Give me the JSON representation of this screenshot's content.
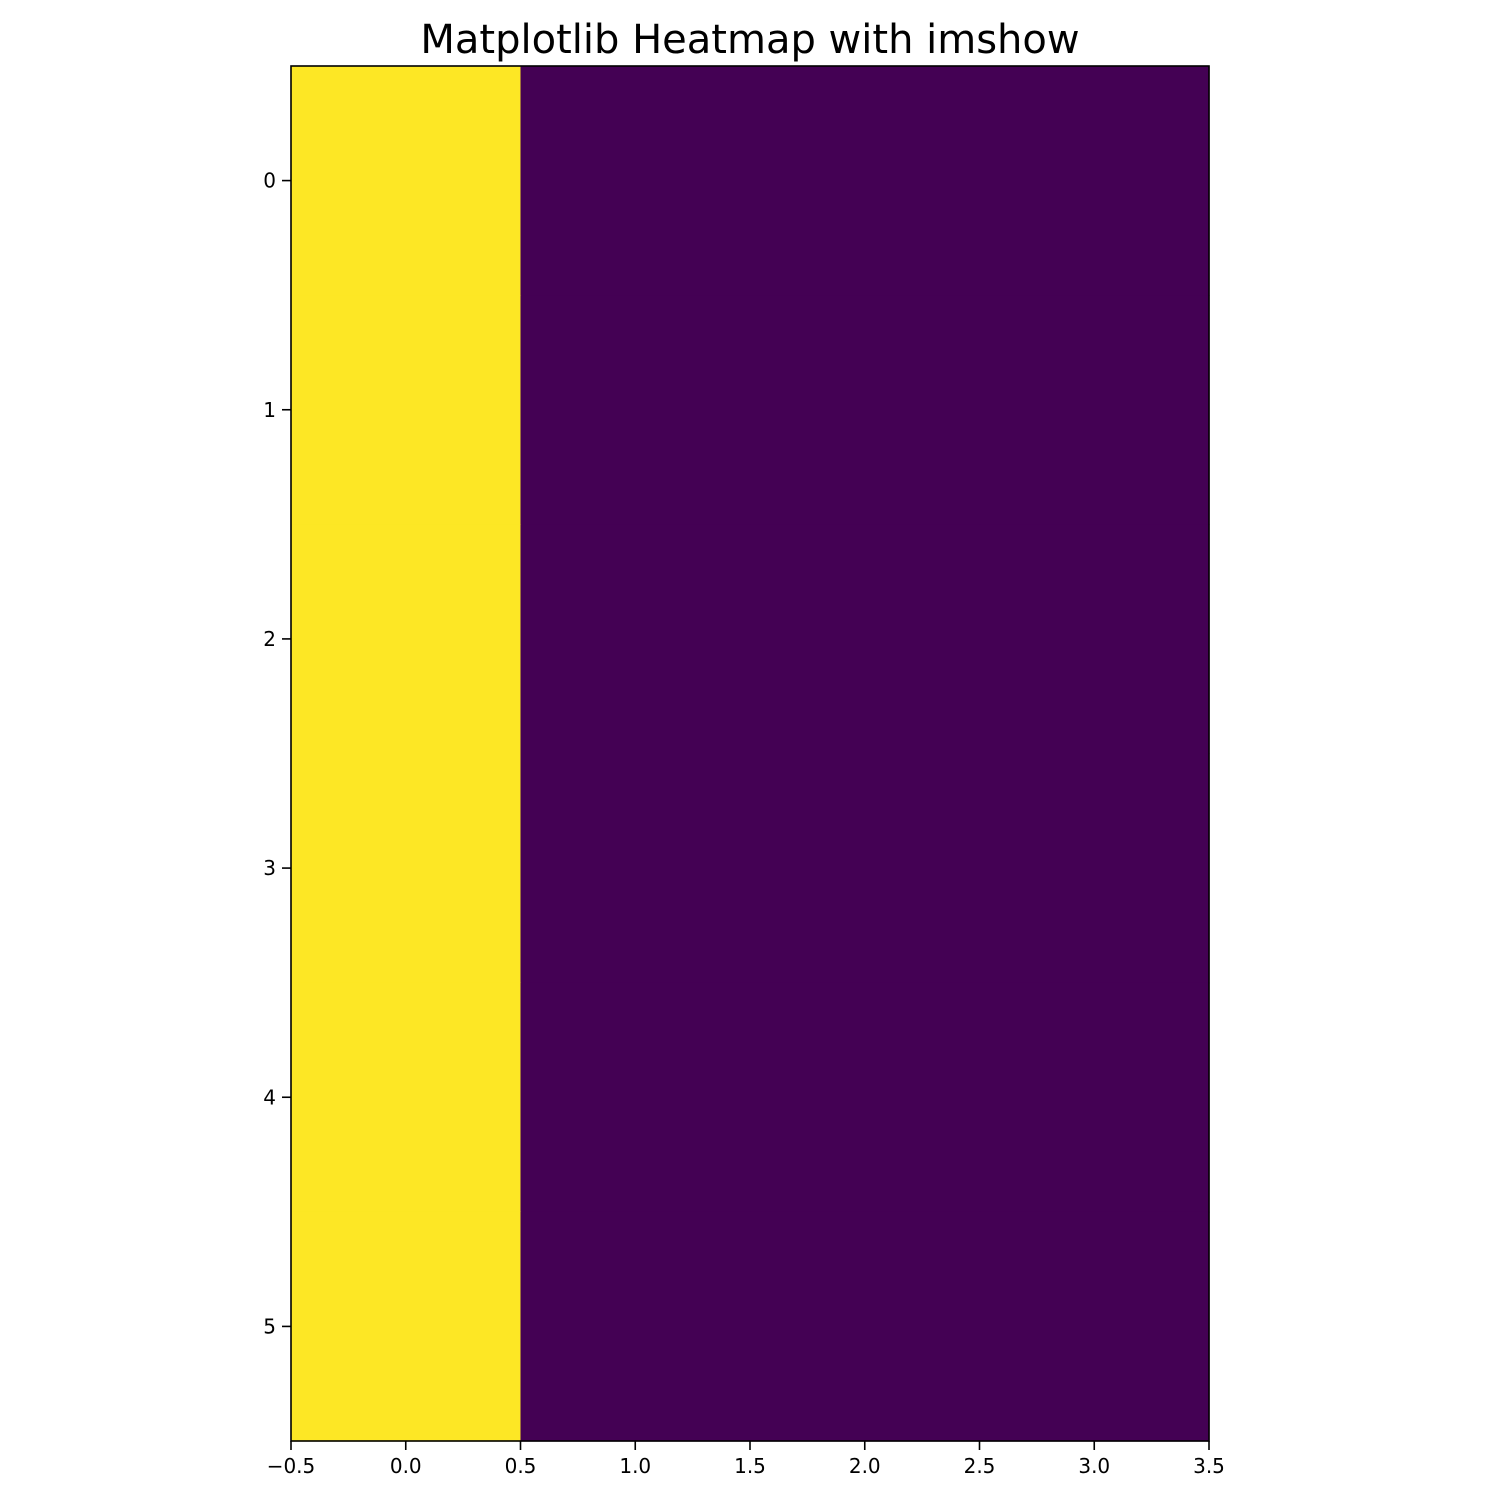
{
  "chart_data": {
    "type": "heatmap",
    "title": "Matplotlib Heatmap with imshow",
    "xlabel": "",
    "ylabel": "",
    "rows": 6,
    "cols": 4,
    "matrix": [
      [
        1,
        0,
        0,
        0
      ],
      [
        1,
        0,
        0,
        0
      ],
      [
        1,
        0,
        0,
        0
      ],
      [
        1,
        0,
        0,
        0
      ],
      [
        1,
        0,
        0,
        0
      ],
      [
        1,
        0,
        0,
        0
      ]
    ],
    "colormap": "viridis",
    "colors": {
      "high": "#fde725",
      "low": "#440154"
    },
    "xlim": [
      -0.5,
      3.5
    ],
    "ylim": [
      5.5,
      -0.5
    ],
    "xticks": [
      -0.5,
      0.0,
      0.5,
      1.0,
      1.5,
      2.0,
      2.5,
      3.0,
      3.5
    ],
    "xtick_labels": [
      "−0.5",
      "0.0",
      "0.5",
      "1.0",
      "1.5",
      "2.0",
      "2.5",
      "3.0",
      "3.5"
    ],
    "yticks": [
      0,
      1,
      2,
      3,
      4,
      5
    ],
    "ytick_labels": [
      "0",
      "1",
      "2",
      "3",
      "4",
      "5"
    ],
    "grid": false,
    "legend": "none"
  }
}
